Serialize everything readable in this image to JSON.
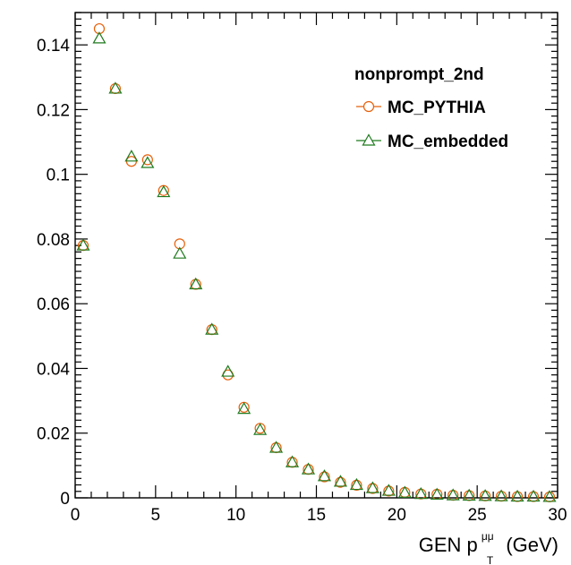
{
  "chart_data": {
    "type": "scatter",
    "title": "",
    "xlabel": {
      "main": "GEN p",
      "superscript": "μμ",
      "subscript": "T",
      "unit": "(GeV)"
    },
    "ylabel": "",
    "xlim": [
      0,
      30
    ],
    "ylim": [
      0,
      0.15
    ],
    "x_ticks": [
      "0",
      "5",
      "10",
      "15",
      "20",
      "25",
      "30"
    ],
    "y_ticks": [
      "0",
      "0.02",
      "0.04",
      "0.06",
      "0.08",
      "0.1",
      "0.12",
      "0.14"
    ],
    "x_tick_values": [
      0,
      5,
      10,
      15,
      20,
      25,
      30
    ],
    "y_tick_values": [
      0,
      0.02,
      0.04,
      0.06,
      0.08,
      0.1,
      0.12,
      0.14
    ],
    "grid": false,
    "legend": {
      "title": "nonprompt_2nd",
      "placement": "top-right"
    },
    "series": [
      {
        "name": "MC_PYTHIA",
        "marker": "circle",
        "color": "#e8600a",
        "x": [
          0.5,
          1.5,
          2.5,
          3.5,
          4.5,
          5.5,
          6.5,
          7.5,
          8.5,
          9.5,
          10.5,
          11.5,
          12.5,
          13.5,
          14.5,
          15.5,
          16.5,
          17.5,
          18.5,
          19.5,
          20.5,
          21.5,
          22.5,
          23.5,
          24.5,
          25.5,
          26.5,
          27.5,
          28.5,
          29.5
        ],
        "values": [
          0.078,
          0.145,
          0.1265,
          0.104,
          0.1045,
          0.095,
          0.0785,
          0.066,
          0.052,
          0.038,
          0.028,
          0.0215,
          0.0155,
          0.011,
          0.0088,
          0.0065,
          0.0048,
          0.0039,
          0.0029,
          0.0021,
          0.0017,
          0.0012,
          0.0011,
          0.0008,
          0.0007,
          0.0006,
          0.0005,
          0.0004,
          0.0004,
          0.0003
        ]
      },
      {
        "name": "MC_embedded",
        "marker": "triangle",
        "color": "#1f7a1f",
        "x": [
          0.5,
          1.5,
          2.5,
          3.5,
          4.5,
          5.5,
          6.5,
          7.5,
          8.5,
          9.5,
          10.5,
          11.5,
          12.5,
          13.5,
          14.5,
          15.5,
          16.5,
          17.5,
          18.5,
          19.5,
          20.5,
          21.5,
          22.5,
          23.5,
          24.5,
          25.5,
          26.5,
          27.5,
          28.5,
          29.5
        ],
        "values": [
          0.078,
          0.142,
          0.1265,
          0.1055,
          0.1035,
          0.0945,
          0.0755,
          0.066,
          0.052,
          0.039,
          0.0275,
          0.021,
          0.0155,
          0.011,
          0.0088,
          0.0067,
          0.005,
          0.004,
          0.003,
          0.0022,
          0.0016,
          0.0012,
          0.001,
          0.0008,
          0.0007,
          0.0006,
          0.0005,
          0.0004,
          0.0004,
          0.0003
        ]
      }
    ]
  }
}
